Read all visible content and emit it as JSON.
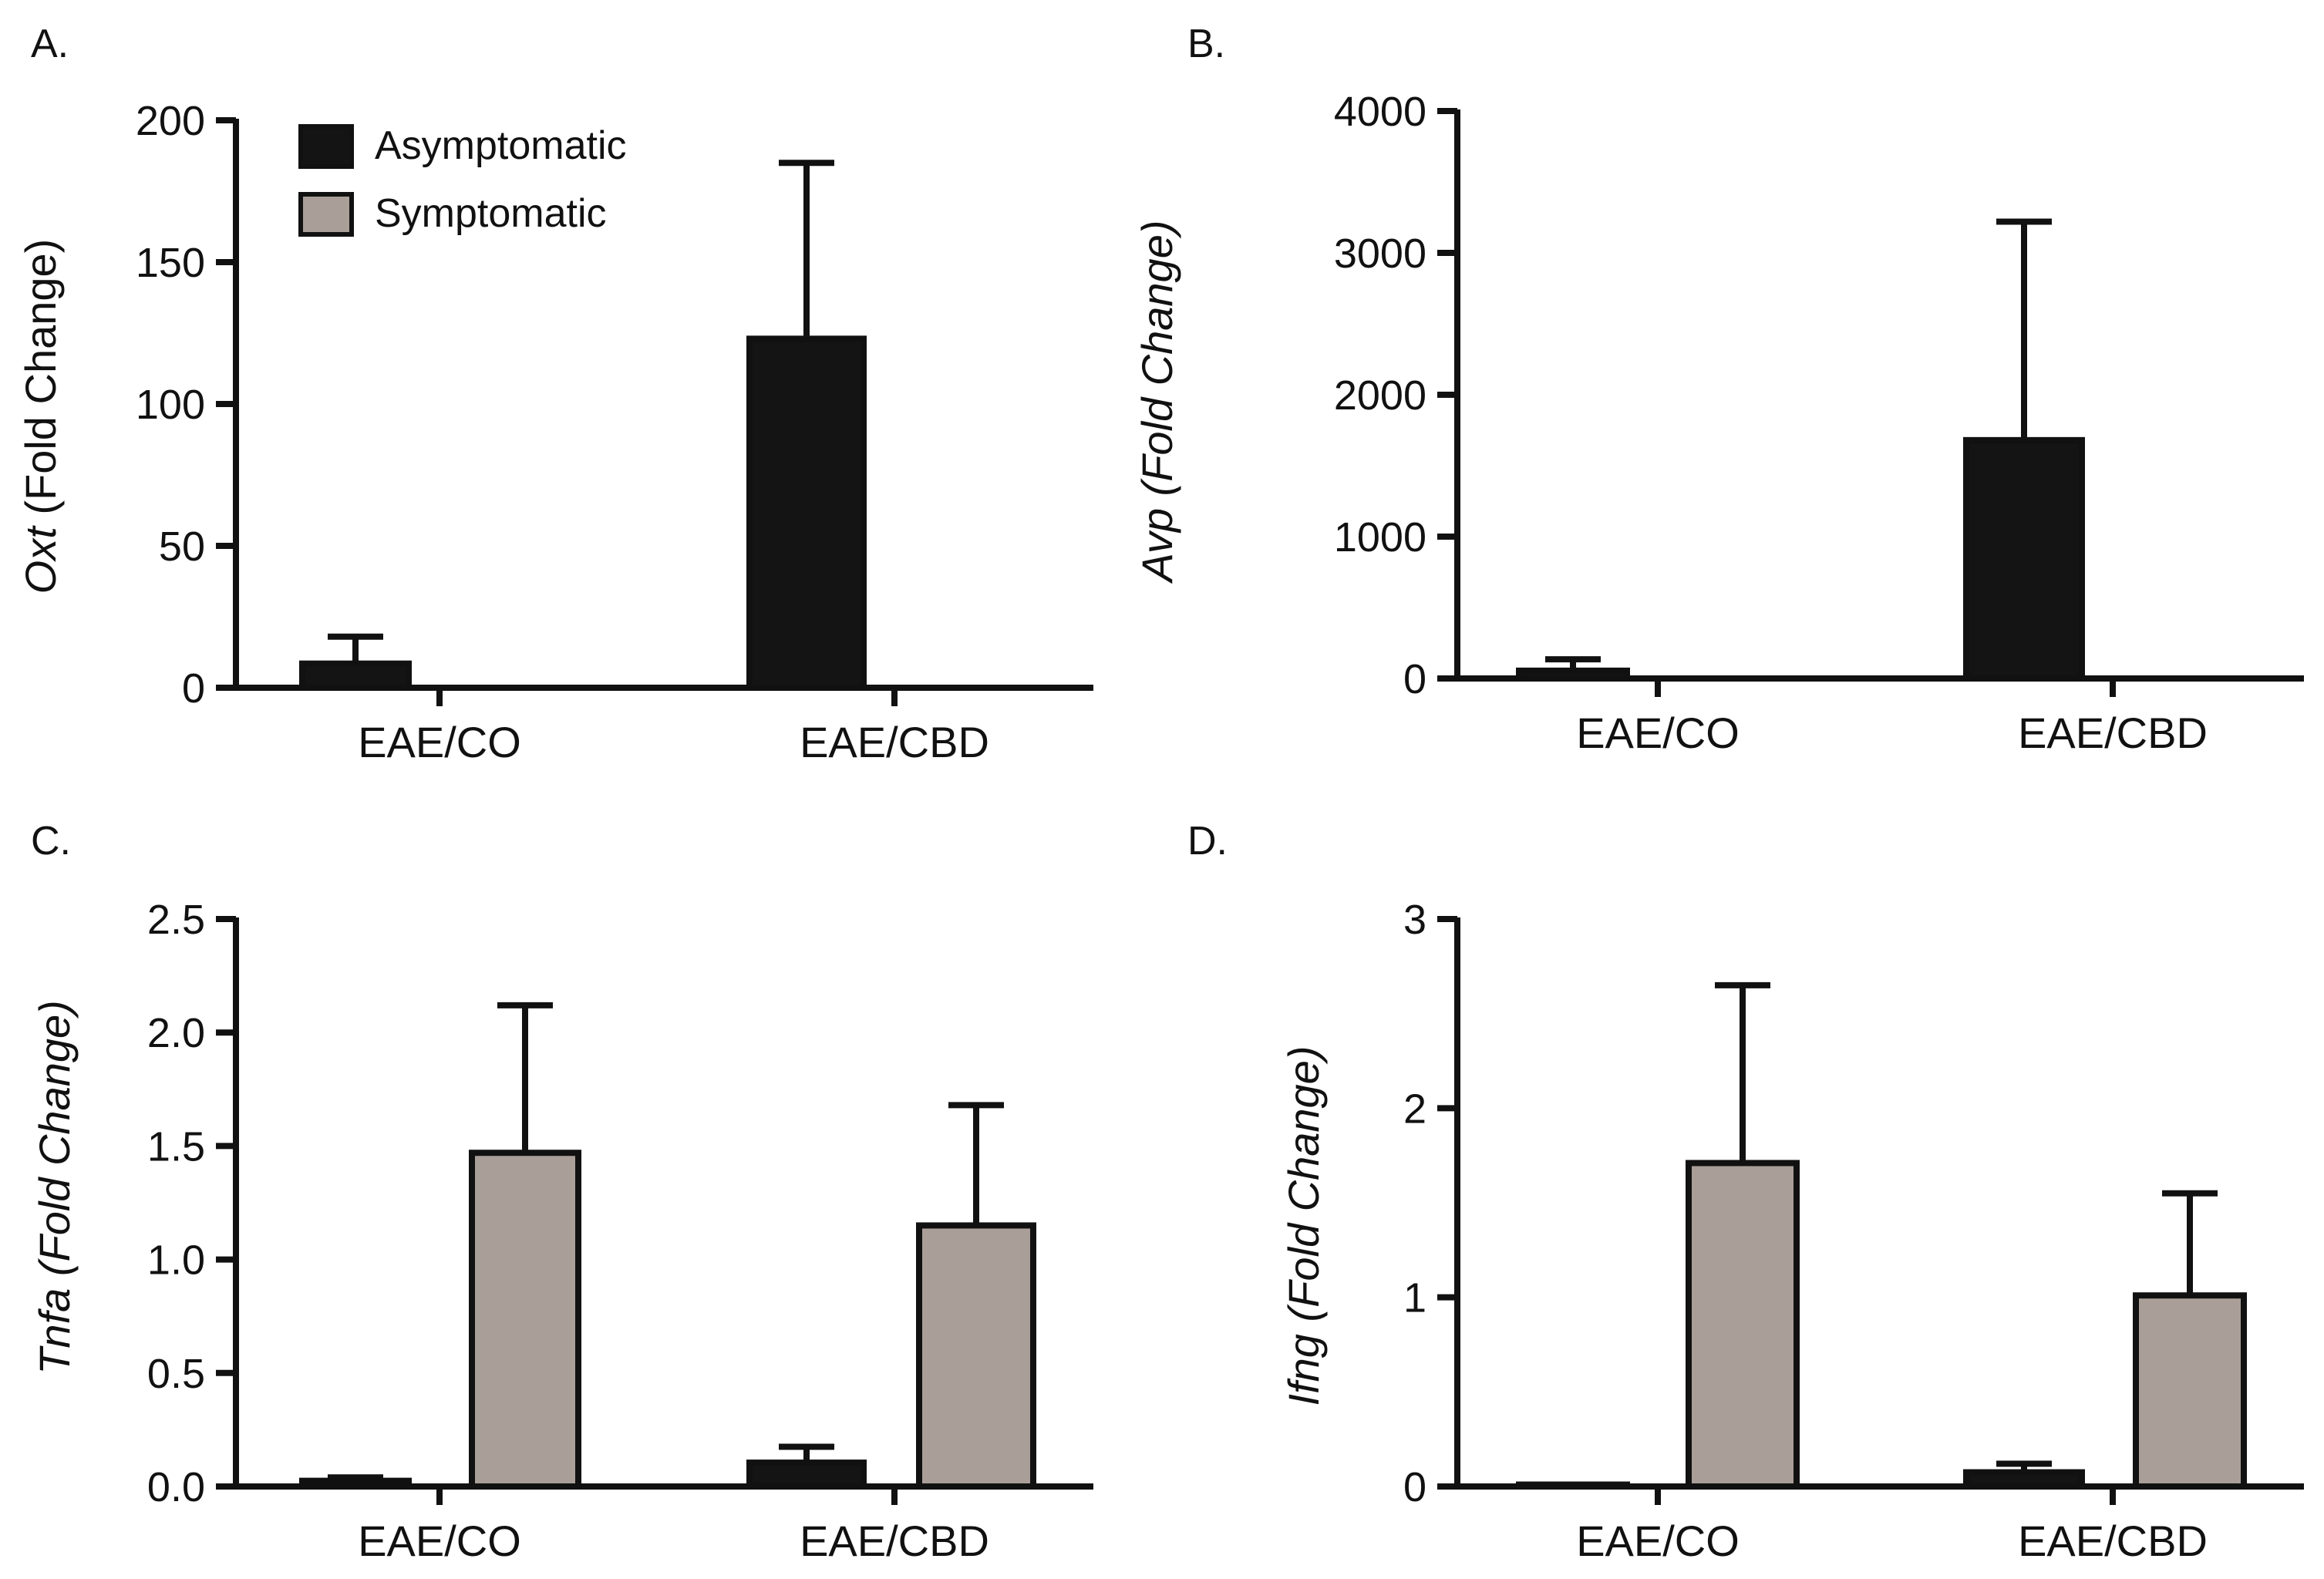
{
  "colors": {
    "asymptomatic": "#141414",
    "symptomatic": "#aa9e99",
    "axis": "#111111"
  },
  "legend": [
    {
      "key": "asymptomatic",
      "label": "Asymptomatic"
    },
    {
      "key": "symptomatic",
      "label": "Symptomatic"
    }
  ],
  "chart_data": [
    {
      "panel": "A.",
      "type": "bar",
      "ylabel_gene": "Oxt",
      "ylabel_rest": " (Fold Change)",
      "rest_italic": false,
      "categories": [
        "EAE/CO",
        "EAE/CBD"
      ],
      "ylim": [
        0,
        200
      ],
      "ticks": [
        0,
        50,
        100,
        150,
        200
      ],
      "tick_labels": [
        "0",
        "50",
        "100",
        "150",
        "200"
      ],
      "series": [
        {
          "name": "Asymptomatic",
          "values": [
            8.5,
            123
          ],
          "errors": [
            9.5,
            62
          ]
        },
        {
          "name": "Symptomatic",
          "values": [
            0.2,
            0.3
          ],
          "errors": [
            0,
            0
          ]
        }
      ]
    },
    {
      "panel": "B.",
      "type": "bar",
      "ylabel_gene": "Avp",
      "ylabel_rest": " (Fold Change)",
      "rest_italic": true,
      "categories": [
        "EAE/CO",
        "EAE/CBD"
      ],
      "ylim": [
        0,
        4000
      ],
      "ticks": [
        0,
        1000,
        2000,
        3000,
        4000
      ],
      "tick_labels": [
        "0",
        "1000",
        "2000",
        "3000",
        "4000"
      ],
      "series": [
        {
          "name": "Asymptomatic",
          "values": [
            55,
            1680
          ],
          "errors": [
            80,
            1540
          ]
        },
        {
          "name": "Symptomatic",
          "values": [
            2,
            3
          ],
          "errors": [
            0,
            0
          ]
        }
      ]
    },
    {
      "panel": "C.",
      "type": "bar",
      "ylabel_gene": "Tnfa",
      "ylabel_rest": " (Fold Change)",
      "rest_italic": true,
      "categories": [
        "EAE/CO",
        "EAE/CBD"
      ],
      "ylim": [
        0,
        2.5
      ],
      "ticks": [
        0,
        0.5,
        1.0,
        1.5,
        2.0,
        2.5
      ],
      "tick_labels": [
        "0.0",
        "0.5",
        "1.0",
        "1.5",
        "2.0",
        "2.5"
      ],
      "series": [
        {
          "name": "Asymptomatic",
          "values": [
            0.025,
            0.105
          ],
          "errors": [
            0.015,
            0.07
          ]
        },
        {
          "name": "Symptomatic",
          "values": [
            1.47,
            1.15
          ],
          "errors": [
            0.65,
            0.53
          ]
        }
      ]
    },
    {
      "panel": "D.",
      "type": "bar",
      "ylabel_gene": "Ifng",
      "ylabel_rest": " (Fold Change)",
      "rest_italic": true,
      "categories": [
        "EAE/CO",
        "EAE/CBD"
      ],
      "ylim": [
        0,
        3
      ],
      "ticks": [
        0,
        1,
        2,
        3
      ],
      "tick_labels": [
        "0",
        "1",
        "2",
        "3"
      ],
      "series": [
        {
          "name": "Asymptomatic",
          "values": [
            0.01,
            0.075
          ],
          "errors": [
            0,
            0.045
          ]
        },
        {
          "name": "Symptomatic",
          "values": [
            1.71,
            1.01
          ],
          "errors": [
            0.94,
            0.54
          ]
        }
      ]
    }
  ]
}
